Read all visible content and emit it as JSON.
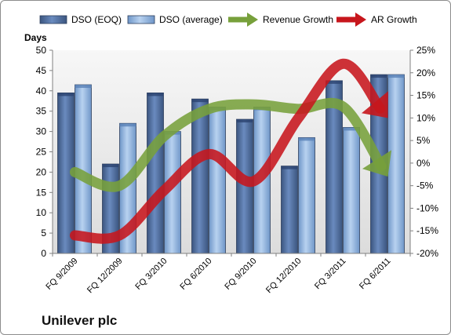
{
  "company": "Unilever plc",
  "chart_data": {
    "type": "bar",
    "ylabel": "Days",
    "categories": [
      "FQ 9/2009",
      "FQ 12/2009",
      "FQ 3/2010",
      "FQ 6/2010",
      "FQ 9/2010",
      "FQ 12/2010",
      "FQ 3/2011",
      "FQ 6/2011"
    ],
    "ylim": [
      0,
      50
    ],
    "y2lim": [
      -20,
      25
    ],
    "yticks": [
      "0",
      "5",
      "10",
      "15",
      "20",
      "25",
      "30",
      "35",
      "40",
      "45",
      "50"
    ],
    "y2ticks": [
      "-20%",
      "-15%",
      "-10%",
      "-5%",
      "0%",
      "5%",
      "10%",
      "15%",
      "20%",
      "25%"
    ],
    "series": [
      {
        "name": "DSO (EOQ)",
        "axis": "left",
        "kind": "bar",
        "color": "#4f6c9f",
        "values": [
          39.5,
          22,
          39.5,
          38,
          33,
          21.5,
          42.5,
          44
        ]
      },
      {
        "name": "DSO (average)",
        "axis": "left",
        "kind": "bar",
        "color": "#8fb4e3",
        "values": [
          41.5,
          32,
          30,
          36,
          36,
          28.5,
          31,
          44
        ]
      },
      {
        "name": "Revenue Growth",
        "axis": "right",
        "kind": "arrow",
        "color": "#77a03b",
        "values": [
          -2,
          -5,
          6,
          12,
          13,
          12,
          12.5,
          -3
        ]
      },
      {
        "name": "AR Growth",
        "axis": "right",
        "kind": "arrow",
        "color": "#c7161c",
        "values": [
          -16,
          -16,
          -6,
          2,
          -4,
          10,
          22,
          10
        ]
      }
    ],
    "legend": "top",
    "grid": false
  }
}
